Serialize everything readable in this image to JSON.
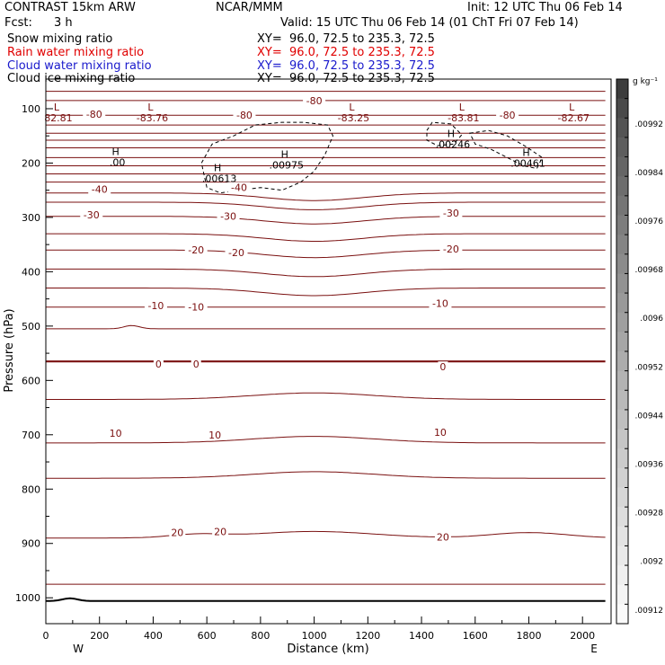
{
  "header": {
    "model": "CONTRAST 15km ARW",
    "org": "NCAR/MMM",
    "init": "Init: 12 UTC Thu 06 Feb 14",
    "fcst_label": "Fcst:",
    "fcst_value": "3 h",
    "valid": "Valid: 15 UTC Thu 06 Feb 14 (01 ChT Fri 07 Feb 14)"
  },
  "fields": [
    {
      "name": "Snow mixing ratio",
      "xy": "XY=  96.0, 72.5 to 235.3, 72.5",
      "color": "#000000"
    },
    {
      "name": "Rain water mixing ratio",
      "xy": "XY=  96.0, 72.5 to 235.3, 72.5",
      "color": "#e00000"
    },
    {
      "name": "Cloud water mixing ratio",
      "xy": "XY=  96.0, 72.5 to 235.3, 72.5",
      "color": "#1a1acc"
    },
    {
      "name": "Cloud ice mixing ratio",
      "xy": "XY=  96.0, 72.5 to 235.3, 72.5",
      "color": "#000000"
    }
  ],
  "chart_data": {
    "type": "line",
    "xlabel": "Distance (km)",
    "ylabel": "Pressure (hPa)",
    "x_ticks": [
      0,
      200,
      400,
      600,
      800,
      1000,
      1200,
      1400,
      1600,
      1800,
      2000
    ],
    "y_ticks": [
      100,
      200,
      300,
      400,
      500,
      600,
      700,
      800,
      900,
      1000
    ],
    "xlim": [
      0,
      2090
    ],
    "ylim": [
      1050,
      50
    ],
    "west_label": "W",
    "east_label": "E",
    "temperature_labels": [
      {
        "text": "-80",
        "x": 1000,
        "p": 85
      },
      {
        "text": "-80",
        "x": 180,
        "p": 110
      },
      {
        "text": "-80",
        "x": 740,
        "p": 112
      },
      {
        "text": "-80",
        "x": 1720,
        "p": 112
      },
      {
        "text": "-40",
        "x": 200,
        "p": 248
      },
      {
        "text": "-40",
        "x": 720,
        "p": 245
      },
      {
        "text": "-30",
        "x": 170,
        "p": 295
      },
      {
        "text": "-30",
        "x": 680,
        "p": 298
      },
      {
        "text": "-30",
        "x": 1510,
        "p": 292
      },
      {
        "text": "-20",
        "x": 560,
        "p": 360
      },
      {
        "text": "-20",
        "x": 710,
        "p": 365
      },
      {
        "text": "-20",
        "x": 1510,
        "p": 358
      },
      {
        "text": "-10",
        "x": 410,
        "p": 462
      },
      {
        "text": "-10",
        "x": 560,
        "p": 465
      },
      {
        "text": "-10",
        "x": 1470,
        "p": 458
      },
      {
        "text": "0",
        "x": 420,
        "p": 570
      },
      {
        "text": "0",
        "x": 560,
        "p": 570
      },
      {
        "text": "0",
        "x": 1480,
        "p": 575
      },
      {
        "text": "10",
        "x": 260,
        "p": 697
      },
      {
        "text": "10",
        "x": 630,
        "p": 700
      },
      {
        "text": "10",
        "x": 1470,
        "p": 695
      },
      {
        "text": "20",
        "x": 490,
        "p": 880
      },
      {
        "text": "20",
        "x": 650,
        "p": 878
      },
      {
        "text": "20",
        "x": 1480,
        "p": 888
      }
    ],
    "contour_baselines_hpa": [
      68,
      85,
      112,
      130,
      145,
      158,
      172,
      190,
      205,
      220,
      235,
      255,
      272,
      298,
      330,
      360,
      395,
      430,
      465,
      505,
      565,
      635,
      715,
      780,
      890,
      975
    ],
    "extrema": [
      {
        "kind": "L",
        "value": "82.81",
        "x": 40,
        "p": 103
      },
      {
        "kind": "L",
        "value": "-83.76",
        "x": 390,
        "p": 103
      },
      {
        "kind": "L",
        "value": "-83.25",
        "x": 1140,
        "p": 103
      },
      {
        "kind": "L",
        "value": "-83.81",
        "x": 1550,
        "p": 103
      },
      {
        "kind": "L",
        "value": "-82.67",
        "x": 1960,
        "p": 103
      },
      {
        "kind": "H",
        "value": ".00",
        "x": 260,
        "p": 185
      },
      {
        "kind": "H",
        "value": ".00613",
        "x": 640,
        "p": 215
      },
      {
        "kind": "H",
        "value": ".00975",
        "x": 890,
        "p": 190
      },
      {
        "kind": "H",
        "value": ".00246",
        "x": 1510,
        "p": 152
      },
      {
        "kind": "H",
        "value": ".00461",
        "x": 1790,
        "p": 187
      }
    ],
    "colorbar": {
      "unit": "g kg⁻¹",
      "labels": [
        ".00992",
        ".00984",
        ".00976",
        ".00968",
        ".0096",
        ".00952",
        ".00944",
        ".00936",
        ".00928",
        ".0092",
        ".00912"
      ]
    }
  }
}
